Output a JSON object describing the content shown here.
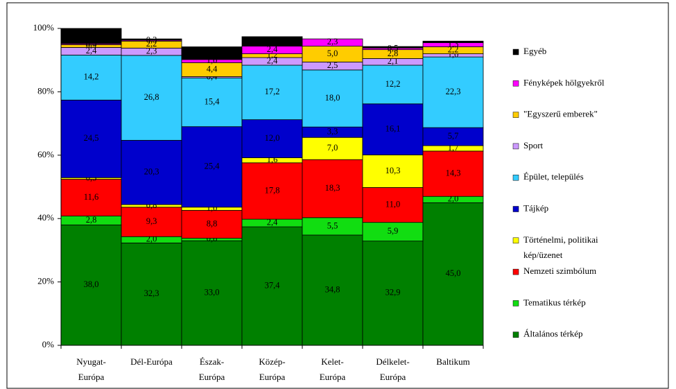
{
  "chart_data": {
    "type": "stacked-bar",
    "categories": [
      "Nyugat-Európa",
      "Dél-Európa",
      "Észak-Európa",
      "Közép-Európa",
      "Kelet-Európa",
      "Délkelet-Európa",
      "Baltikum"
    ],
    "ylim": [
      0,
      100
    ],
    "yticks": [
      {
        "value": 0,
        "label": "0%"
      },
      {
        "value": 20,
        "label": "20%"
      },
      {
        "value": 40,
        "label": "40%"
      },
      {
        "value": 60,
        "label": "60%"
      },
      {
        "value": 80,
        "label": "80%"
      },
      {
        "value": 100,
        "label": "100%"
      }
    ],
    "legend": "right",
    "series": [
      {
        "name": "Általános térkép",
        "color": "#008000",
        "values": [
          38.0,
          32.3,
          33.0,
          37.4,
          34.8,
          32.9,
          45.0
        ],
        "value_labels": [
          "38,0",
          "32,3",
          "33,0",
          "37,4",
          "34,8",
          "32,9",
          "45,0"
        ]
      },
      {
        "name": "Tematikus térkép",
        "color": "#11dd11",
        "values": [
          2.8,
          2.0,
          0.8,
          2.4,
          5.5,
          5.9,
          2.0
        ],
        "value_labels": [
          "2,8",
          "2,0",
          "0,8",
          "2,4",
          "5,5",
          "5,9",
          "2,0"
        ]
      },
      {
        "name": "Nemzeti szimbólum",
        "color": "#ff0000",
        "values": [
          11.6,
          9.3,
          8.8,
          17.8,
          18.3,
          11.0,
          14.3
        ],
        "value_labels": [
          "11,6",
          "9,3",
          "8,8",
          "17,8",
          "18,3",
          "11,0",
          "14,3"
        ]
      },
      {
        "name": "Történelmi, politikai kép/üzenet",
        "color": "#ffff00",
        "values": [
          0.5,
          0.8,
          1.0,
          1.6,
          7.0,
          10.3,
          1.7
        ],
        "value_labels": [
          "0,5",
          "0,8",
          "1,0",
          "1,6",
          "7,0",
          "10,3",
          "1,7"
        ]
      },
      {
        "name": "Tájkép",
        "color": "#0000cc",
        "values": [
          24.5,
          20.3,
          25.4,
          12.0,
          3.3,
          16.1,
          5.7
        ],
        "value_labels": [
          "24,5",
          "20,3",
          "25,4",
          "12,0",
          "3,3",
          "16,1",
          "5,7"
        ]
      },
      {
        "name": "Épület, település",
        "color": "#33ccff",
        "values": [
          14.2,
          26.8,
          15.4,
          17.2,
          18.0,
          12.2,
          22.3
        ],
        "value_labels": [
          "14,2",
          "26,8",
          "15,4",
          "17,2",
          "18,0",
          "12,2",
          "22,3"
        ]
      },
      {
        "name": "Sport",
        "color": "#cc99ff",
        "values": [
          2.4,
          2.3,
          0.4,
          2.4,
          2.5,
          2.1,
          1.0
        ],
        "value_labels": [
          "2,4",
          "2,3",
          "0,4",
          "2,4",
          "2,5",
          "2,1",
          "1,0"
        ]
      },
      {
        "name": "\"Egyszerű emberek\"",
        "color": "#ffcc00",
        "values": [
          0.9,
          2.2,
          4.4,
          1.2,
          5.0,
          2.8,
          2.2
        ],
        "value_labels": [
          "0,9",
          "2,2",
          "4,4",
          "1,2",
          "5,0",
          "2,8",
          "2,2"
        ]
      },
      {
        "name": "Fényképek hölgyekről",
        "color": "#ff00ff",
        "values": [
          0.3,
          0.3,
          1.0,
          2.4,
          2.3,
          0.5,
          1.3
        ],
        "value_labels": [
          "0,3",
          "0,3",
          "1,0",
          "2,4",
          "2,3",
          "0,5",
          "1,3"
        ]
      },
      {
        "name": "Egyéb",
        "color": "#000000",
        "values": [
          4.8,
          0.4,
          4.0,
          3.0,
          0,
          0.5,
          0.5
        ]
      }
    ]
  }
}
